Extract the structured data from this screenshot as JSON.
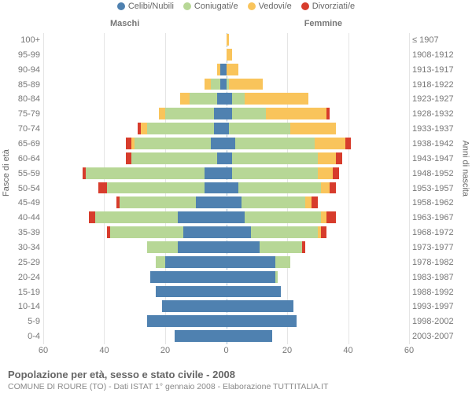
{
  "chart": {
    "type": "population-pyramid",
    "legend": [
      {
        "label": "Celibi/Nubili",
        "color": "#4f81b0"
      },
      {
        "label": "Coniugati/e",
        "color": "#b7d796"
      },
      {
        "label": "Vedovi/e",
        "color": "#f9c45b"
      },
      {
        "label": "Divorziati/e",
        "color": "#d73c2c"
      }
    ],
    "columns": {
      "left": "Maschi",
      "right": "Femmine"
    },
    "axis_left_title": "Fasce di età",
    "axis_right_title": "Anni di nascita",
    "x_ticks": [
      60,
      40,
      20,
      0,
      20,
      40,
      60
    ],
    "xlim": 60,
    "centerline_color": "#9fbcd6",
    "grid_color": "#e5e5e5",
    "rows": [
      {
        "age": "100+",
        "birth": "≤ 1907",
        "m": [
          0,
          0,
          0,
          0
        ],
        "f": [
          0,
          0,
          1,
          0
        ]
      },
      {
        "age": "95-99",
        "birth": "1908-1912",
        "m": [
          0,
          0,
          0,
          0
        ],
        "f": [
          0,
          0,
          2,
          0
        ]
      },
      {
        "age": "90-94",
        "birth": "1913-1917",
        "m": [
          2,
          0,
          1,
          0
        ],
        "f": [
          0,
          0,
          4,
          0
        ]
      },
      {
        "age": "85-89",
        "birth": "1918-1922",
        "m": [
          2,
          3,
          2,
          0
        ],
        "f": [
          0,
          1,
          11,
          0
        ]
      },
      {
        "age": "80-84",
        "birth": "1923-1927",
        "m": [
          3,
          9,
          3,
          0
        ],
        "f": [
          2,
          4,
          21,
          0
        ]
      },
      {
        "age": "75-79",
        "birth": "1928-1932",
        "m": [
          4,
          16,
          2,
          0
        ],
        "f": [
          2,
          11,
          20,
          1
        ]
      },
      {
        "age": "70-74",
        "birth": "1933-1937",
        "m": [
          4,
          22,
          2,
          1
        ],
        "f": [
          1,
          20,
          15,
          0
        ]
      },
      {
        "age": "65-69",
        "birth": "1938-1942",
        "m": [
          5,
          25,
          1,
          2
        ],
        "f": [
          3,
          26,
          10,
          2
        ]
      },
      {
        "age": "60-64",
        "birth": "1943-1947",
        "m": [
          3,
          28,
          0,
          2
        ],
        "f": [
          2,
          28,
          6,
          2
        ]
      },
      {
        "age": "55-59",
        "birth": "1948-1952",
        "m": [
          7,
          39,
          0,
          1
        ],
        "f": [
          2,
          28,
          5,
          2
        ]
      },
      {
        "age": "50-54",
        "birth": "1953-1957",
        "m": [
          7,
          32,
          0,
          3
        ],
        "f": [
          4,
          27,
          3,
          2
        ]
      },
      {
        "age": "45-49",
        "birth": "1958-1962",
        "m": [
          10,
          25,
          0,
          1
        ],
        "f": [
          5,
          21,
          2,
          2
        ]
      },
      {
        "age": "40-44",
        "birth": "1963-1967",
        "m": [
          16,
          27,
          0,
          2
        ],
        "f": [
          6,
          25,
          2,
          3
        ]
      },
      {
        "age": "35-39",
        "birth": "1968-1972",
        "m": [
          14,
          24,
          0,
          1
        ],
        "f": [
          8,
          22,
          1,
          2
        ]
      },
      {
        "age": "30-34",
        "birth": "1973-1977",
        "m": [
          16,
          10,
          0,
          0
        ],
        "f": [
          11,
          14,
          0,
          1
        ]
      },
      {
        "age": "25-29",
        "birth": "1978-1982",
        "m": [
          20,
          3,
          0,
          0
        ],
        "f": [
          16,
          5,
          0,
          0
        ]
      },
      {
        "age": "20-24",
        "birth": "1983-1987",
        "m": [
          25,
          0,
          0,
          0
        ],
        "f": [
          16,
          1,
          0,
          0
        ]
      },
      {
        "age": "15-19",
        "birth": "1988-1992",
        "m": [
          23,
          0,
          0,
          0
        ],
        "f": [
          18,
          0,
          0,
          0
        ]
      },
      {
        "age": "10-14",
        "birth": "1993-1997",
        "m": [
          21,
          0,
          0,
          0
        ],
        "f": [
          22,
          0,
          0,
          0
        ]
      },
      {
        "age": "5-9",
        "birth": "1998-2002",
        "m": [
          26,
          0,
          0,
          0
        ],
        "f": [
          23,
          0,
          0,
          0
        ]
      },
      {
        "age": "0-4",
        "birth": "2003-2007",
        "m": [
          17,
          0,
          0,
          0
        ],
        "f": [
          15,
          0,
          0,
          0
        ]
      }
    ]
  },
  "footer": {
    "title": "Popolazione per età, sesso e stato civile - 2008",
    "subtitle": "COMUNE DI ROURE (TO) - Dati ISTAT 1° gennaio 2008 - Elaborazione TUTTITALIA.IT"
  }
}
